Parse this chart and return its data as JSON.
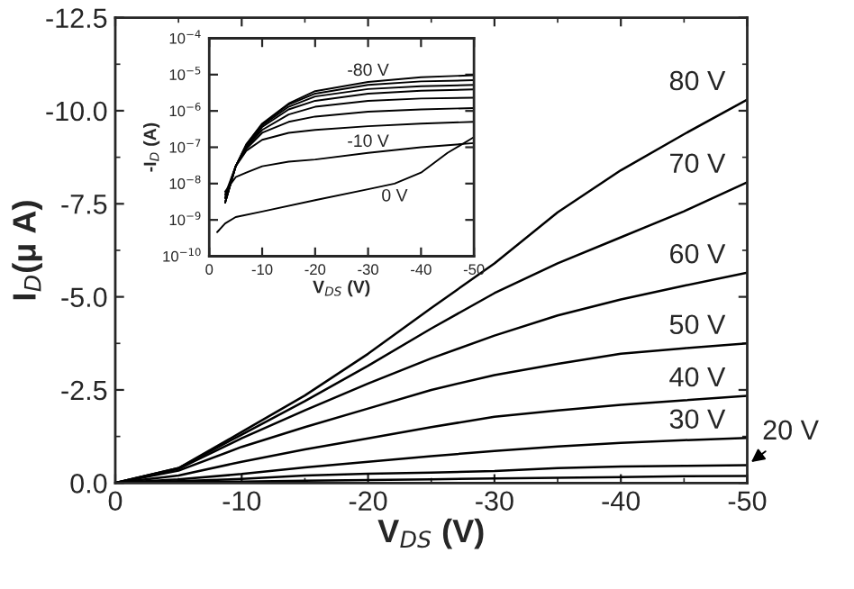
{
  "chart_data": [
    {
      "type": "line",
      "xlabel": "V$_{DS}$ (V)",
      "ylabel": "I$_{D}$(μ A)",
      "x": [
        0,
        -5,
        -10,
        -15,
        -20,
        -25,
        -30,
        -35,
        -40,
        -45,
        -50
      ],
      "xlim": [
        0,
        -50
      ],
      "ylim": [
        0,
        -12.5
      ],
      "xticks": [
        {
          "value": 0,
          "label": "0"
        },
        {
          "value": -10,
          "label": "-10"
        },
        {
          "value": -20,
          "label": "-20"
        },
        {
          "value": -30,
          "label": "-30"
        },
        {
          "value": -40,
          "label": "-40"
        },
        {
          "value": -50,
          "label": "-50"
        }
      ],
      "yticks": [
        {
          "value": 0,
          "label": "0.0"
        },
        {
          "value": -2.5,
          "label": "-2.5"
        },
        {
          "value": -5,
          "label": "-5.0"
        },
        {
          "value": -7.5,
          "label": "-7.5"
        },
        {
          "value": -10,
          "label": "-10.0"
        },
        {
          "value": -12.5,
          "label": "-12.5"
        }
      ],
      "grid": false,
      "legend": false,
      "series": [
        {
          "name": "80 V",
          "color": "#000000",
          "values": [
            0,
            -0.4,
            -1.37,
            -2.35,
            -3.47,
            -4.7,
            -5.9,
            -7.27,
            -8.4,
            -9.37,
            -10.3
          ]
        },
        {
          "name": "70 V",
          "color": "#000000",
          "values": [
            0,
            -0.4,
            -1.3,
            -2.2,
            -3.15,
            -4.15,
            -5.1,
            -5.9,
            -6.6,
            -7.3,
            -8.08
          ]
        },
        {
          "name": "60 V",
          "color": "#000000",
          "values": [
            0,
            -0.38,
            -1.2,
            -1.95,
            -2.67,
            -3.35,
            -3.96,
            -4.5,
            -4.93,
            -5.3,
            -5.65
          ]
        },
        {
          "name": "50 V",
          "color": "#000000",
          "values": [
            0,
            -0.33,
            -0.97,
            -1.5,
            -2.0,
            -2.5,
            -2.9,
            -3.2,
            -3.47,
            -3.62,
            -3.75
          ]
        },
        {
          "name": "40 V",
          "color": "#000000",
          "values": [
            0,
            -0.2,
            -0.57,
            -0.9,
            -1.2,
            -1.5,
            -1.78,
            -1.95,
            -2.1,
            -2.22,
            -2.34
          ]
        },
        {
          "name": "30 V",
          "color": "#000000",
          "values": [
            0,
            -0.1,
            -0.24,
            -0.42,
            -0.57,
            -0.72,
            -0.86,
            -0.98,
            -1.08,
            -1.15,
            -1.21
          ]
        },
        {
          "name": "20 V",
          "color": "#000000",
          "values": [
            0,
            -0.05,
            -0.11,
            -0.2,
            -0.25,
            -0.28,
            -0.32,
            -0.4,
            -0.44,
            -0.46,
            -0.48
          ]
        },
        {
          "color": "#000000",
          "values": [
            0,
            -0.02,
            -0.04,
            -0.06,
            -0.08,
            -0.1,
            -0.12,
            -0.14,
            -0.16,
            -0.18,
            -0.19
          ]
        }
      ]
    },
    {
      "type": "line",
      "xlabel": "V$_{DS}$ (V)",
      "ylabel": "-I$_{D}$ (A)",
      "log": "y",
      "xlim": [
        0,
        -50
      ],
      "ylim": [
        1e-10,
        0.0001
      ],
      "x": [
        -3,
        -5,
        -7,
        -10,
        -15,
        -20,
        -30,
        -40,
        -50
      ],
      "xticks": [
        {
          "value": 0,
          "label": "0"
        },
        {
          "value": -10,
          "label": "-10"
        },
        {
          "value": -20,
          "label": "-20"
        },
        {
          "value": -30,
          "label": "-30"
        },
        {
          "value": -40,
          "label": "-40"
        },
        {
          "value": -50,
          "label": "-50"
        }
      ],
      "yticks": [
        {
          "value": 1e-10,
          "label": "10$^{−10}$"
        },
        {
          "value": 1e-09,
          "label": "10$^{−9}$"
        },
        {
          "value": 1e-08,
          "label": "10$^{−8}$"
        },
        {
          "value": 1e-07,
          "label": "10$^{−7}$"
        },
        {
          "value": 1e-06,
          "label": "10$^{−6}$"
        },
        {
          "value": 1e-05,
          "label": "10$^{−5}$"
        },
        {
          "value": 0.0001,
          "label": "10$^{−4}$"
        }
      ],
      "grid": false,
      "legend": false,
      "series": [
        {
          "name": "-80 V",
          "color": "#000000",
          "values": [
            3e-09,
            3e-08,
            1.2e-07,
            4.5e-07,
            1.6e-06,
            3.5e-06,
            6.3e-06,
            8.5e-06,
            9.6e-06
          ]
        },
        {
          "color": "#000000",
          "values": [
            3e-09,
            3e-08,
            1.2e-07,
            4.3e-07,
            1.5e-06,
            3e-06,
            5.2e-06,
            6.5e-06,
            7e-06
          ]
        },
        {
          "color": "#000000",
          "values": [
            3e-09,
            3e-08,
            1.1e-07,
            4e-07,
            1.3e-06,
            2.5e-06,
            4e-06,
            4.8e-06,
            5.2e-06
          ]
        },
        {
          "color": "#000000",
          "values": [
            3e-09,
            3e-08,
            1e-07,
            3.6e-07,
            1.1e-06,
            1.9e-06,
            3e-06,
            3.6e-06,
            3.9e-06
          ]
        },
        {
          "color": "#000000",
          "values": [
            4e-09,
            3e-08,
            1e-07,
            3e-07,
            8e-07,
            1.3e-06,
            1.9e-06,
            2.2e-06,
            2.3e-06
          ]
        },
        {
          "color": "#000000",
          "values": [
            4e-09,
            3e-08,
            9e-08,
            2.5e-07,
            5e-07,
            7e-07,
            9.5e-07,
            1.1e-06,
            1.2e-06
          ]
        },
        {
          "color": "#000000",
          "values": [
            5e-09,
            3e-08,
            8e-08,
            1.6e-07,
            2.5e-07,
            3e-07,
            3.8e-07,
            4.5e-07,
            5e-07
          ]
        },
        {
          "name": "-10 V",
          "color": "#000000",
          "values": [
            6e-09,
            1.5e-08,
            2e-08,
            3e-08,
            4e-08,
            4.6e-08,
            7e-08,
            1e-07,
            1.3e-07
          ]
        },
        {
          "name": "0 V",
          "color": "#000000",
          "x": [
            -1.5,
            -3,
            -5,
            -10,
            -20,
            -30,
            -35,
            -40,
            -45,
            -50
          ],
          "values": [
            4.6e-10,
            8e-10,
            1.2e-09,
            1.7e-09,
            3.5e-09,
            7e-09,
            1e-08,
            2e-08,
            7e-08,
            1.9e-07
          ]
        }
      ]
    }
  ]
}
